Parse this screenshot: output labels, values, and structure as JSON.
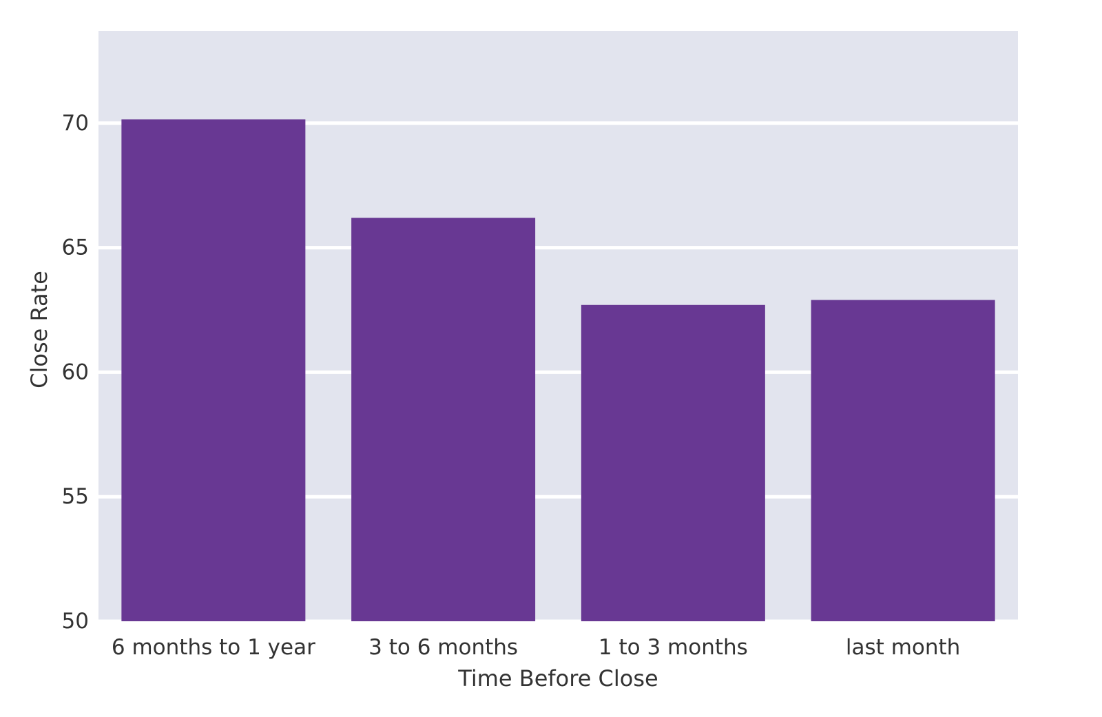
{
  "chart_data": {
    "type": "bar",
    "title": "",
    "xlabel": "Time Before Close",
    "ylabel": "Close Rate",
    "categories": [
      "6 months to 1 year",
      "3 to 6 months",
      "1 to 3 months",
      "last month"
    ],
    "values": [
      70.15,
      66.2,
      62.7,
      62.9
    ],
    "ylim": [
      50,
      73.7
    ],
    "yticks": [
      50,
      55,
      60,
      65,
      70
    ],
    "ytick_labels": [
      "50",
      "55",
      "60",
      "65",
      "70"
    ],
    "grid": true,
    "style": "seaborn-darkgrid"
  },
  "colors": {
    "bar": "#683893",
    "plot_background": "#e2e4ee",
    "grid": "#ffffff",
    "text": "#333333"
  }
}
